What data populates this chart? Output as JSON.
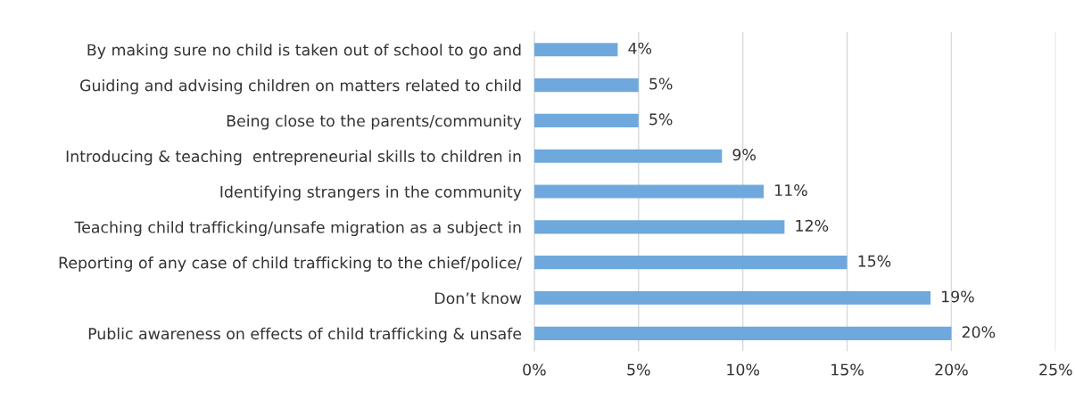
{
  "chart_data": {
    "type": "bar",
    "orientation": "horizontal",
    "categories": [
      "By making sure no child is taken out of school to go and",
      "Guiding and advising children on matters related to child",
      "Being close to the parents/community",
      "Introducing & teaching  entrepreneurial skills to children in",
      "Identifying strangers in the community",
      "Teaching child trafficking/unsafe migration as a subject in",
      "Reporting of any case of child trafficking to the chief/police/",
      "Don’t know",
      "Public awareness on effects of child trafficking & unsafe"
    ],
    "values": [
      4,
      5,
      5,
      9,
      11,
      12,
      15,
      19,
      20
    ],
    "value_labels": [
      "4%",
      "5%",
      "5%",
      "9%",
      "11%",
      "12%",
      "15%",
      "19%",
      "20%"
    ],
    "color": "#6fa8dc",
    "xlim": [
      0,
      25
    ],
    "xticks": [
      {
        "value": 0,
        "label": "0%"
      },
      {
        "value": 5,
        "label": "5%"
      },
      {
        "value": 10,
        "label": "10%"
      },
      {
        "value": 15,
        "label": "15%"
      },
      {
        "value": 20,
        "label": "20%"
      },
      {
        "value": 25,
        "label": "25%"
      }
    ],
    "grid": "x",
    "legend": false
  }
}
